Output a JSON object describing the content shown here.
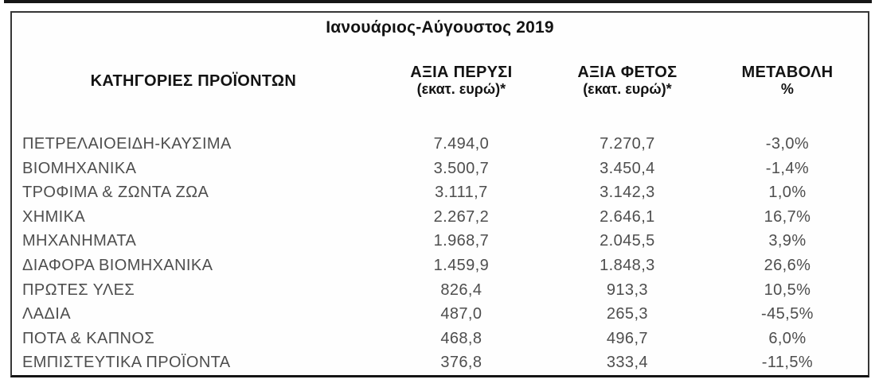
{
  "table": {
    "title": "Ιανουάριος-Αύγουστος 2019",
    "columns": [
      {
        "label": "ΚΑΤΗΓΟΡΙΕΣ ΠΡΟΪΟΝΤΩΝ",
        "sub": ""
      },
      {
        "label": "ΑΞΙΑ ΠΕΡΥΣΙ",
        "sub": "(εκατ. ευρώ)*"
      },
      {
        "label": "ΑΞΙΑ ΦΕΤΟΣ",
        "sub": "(εκατ. ευρώ)*"
      },
      {
        "label": "ΜΕΤΑΒΟΛΗ",
        "sub": "%"
      }
    ],
    "rows": [
      {
        "category": "ΠΕΤΡΕΛΑΙΟΕΙΔΗ-ΚΑΥΣΙΜΑ",
        "value_last_year": "7.494,0",
        "value_this_year": "7.270,7",
        "change_pct": "-3,0%"
      },
      {
        "category": "ΒΙΟΜΗΧΑΝΙΚΑ",
        "value_last_year": "3.500,7",
        "value_this_year": "3.450,4",
        "change_pct": "-1,4%"
      },
      {
        "category": "ΤΡΟΦΙΜΑ & ΖΩΝΤΑ ΖΩΑ",
        "value_last_year": "3.111,7",
        "value_this_year": "3.142,3",
        "change_pct": "1,0%"
      },
      {
        "category": "ΧΗΜΙΚΑ",
        "value_last_year": "2.267,2",
        "value_this_year": "2.646,1",
        "change_pct": "16,7%"
      },
      {
        "category": "ΜΗΧΑΝΗΜΑΤΑ",
        "value_last_year": "1.968,7",
        "value_this_year": "2.045,5",
        "change_pct": "3,9%"
      },
      {
        "category": "ΔΙΑΦΟΡΑ ΒΙΟΜΗΧΑΝΙΚΑ",
        "value_last_year": "1.459,9",
        "value_this_year": "1.848,3",
        "change_pct": "26,6%"
      },
      {
        "category": "ΠΡΩΤΕΣ ΥΛΕΣ",
        "value_last_year": "826,4",
        "value_this_year": "913,3",
        "change_pct": "10,5%"
      },
      {
        "category": "ΛΑΔΙΑ",
        "value_last_year": "487,0",
        "value_this_year": "265,3",
        "change_pct": "-45,5%"
      },
      {
        "category": "ΠΟΤΑ & ΚΑΠΝΟΣ",
        "value_last_year": "468,8",
        "value_this_year": "496,7",
        "change_pct": "6,0%"
      },
      {
        "category": "ΕΜΠΙΣΤΕΥΤΙΚΑ ΠΡΟΪΟΝΤΑ",
        "value_last_year": "376,8",
        "value_this_year": "333,4",
        "change_pct": "-11,5%"
      }
    ]
  },
  "chart_data": {
    "type": "table",
    "title": "Ιανουάριος-Αύγουστος 2019",
    "columns": [
      "ΚΑΤΗΓΟΡΙΕΣ ΠΡΟΪΟΝΤΩΝ",
      "ΑΞΙΑ ΠΕΡΥΣΙ (εκατ. ευρώ)*",
      "ΑΞΙΑ ΦΕΤΟΣ (εκατ. ευρώ)*",
      "ΜΕΤΑΒΟΛΗ %"
    ],
    "rows": [
      [
        "ΠΕΤΡΕΛΑΙΟΕΙΔΗ-ΚΑΥΣΙΜΑ",
        7494.0,
        7270.7,
        -3.0
      ],
      [
        "ΒΙΟΜΗΧΑΝΙΚΑ",
        3500.7,
        3450.4,
        -1.4
      ],
      [
        "ΤΡΟΦΙΜΑ & ΖΩΝΤΑ ΖΩΑ",
        3111.7,
        3142.3,
        1.0
      ],
      [
        "ΧΗΜΙΚΑ",
        2267.2,
        2646.1,
        16.7
      ],
      [
        "ΜΗΧΑΝΗΜΑΤΑ",
        1968.7,
        2045.5,
        3.9
      ],
      [
        "ΔΙΑΦΟΡΑ ΒΙΟΜΗΧΑΝΙΚΑ",
        1459.9,
        1848.3,
        26.6
      ],
      [
        "ΠΡΩΤΕΣ ΥΛΕΣ",
        826.4,
        913.3,
        10.5
      ],
      [
        "ΛΑΔΙΑ",
        487.0,
        265.3,
        -45.5
      ],
      [
        "ΠΟΤΑ & ΚΑΠΝΟΣ",
        468.8,
        496.7,
        6.0
      ],
      [
        "ΕΜΠΙΣΤΕΥΤΙΚΑ ΠΡΟΪΟΝΤΑ",
        376.8,
        333.4,
        -11.5
      ]
    ]
  },
  "colors": {
    "border": "#363636",
    "heavy_rule": "#161616",
    "header_text": "#131313",
    "data_text": "#4e4e4e",
    "background": "#ffffff"
  }
}
